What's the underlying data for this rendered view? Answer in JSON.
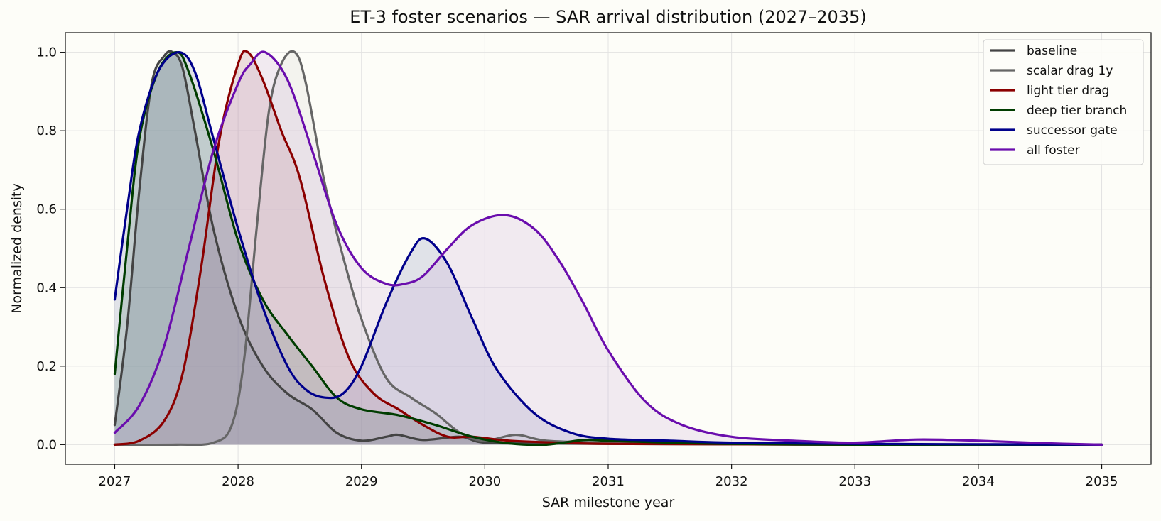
{
  "chart_data": {
    "type": "area",
    "title": "ET-3 foster scenarios — SAR arrival distribution (2027–2035)",
    "xlabel": "SAR milestone year",
    "ylabel": "Normalized density",
    "xlim": [
      2026.6,
      2035.4
    ],
    "ylim": [
      -0.05,
      1.05
    ],
    "xticks": [
      2027,
      2028,
      2029,
      2030,
      2031,
      2032,
      2033,
      2034,
      2035
    ],
    "yticks": [
      0.0,
      0.2,
      0.4,
      0.6,
      0.8,
      1.0
    ],
    "ytick_labels": [
      "0.0",
      "0.2",
      "0.4",
      "0.6",
      "0.8",
      "1.0"
    ],
    "grid": true,
    "legend_position": "top-right",
    "series": [
      {
        "name": "baseline",
        "color": "#444444",
        "fill": "#5a6a7a",
        "x": [
          2027.0,
          2027.1,
          2027.2,
          2027.3,
          2027.4,
          2027.47,
          2027.55,
          2027.65,
          2027.8,
          2028.0,
          2028.2,
          2028.4,
          2028.6,
          2028.8,
          2029.0,
          2029.2,
          2029.3,
          2029.5,
          2029.8,
          2030.0,
          2030.5,
          2031.0,
          2032.0,
          2033.0,
          2034.0,
          2035.0
        ],
        "y": [
          0.05,
          0.3,
          0.65,
          0.92,
          0.99,
          1.0,
          0.96,
          0.8,
          0.55,
          0.33,
          0.2,
          0.13,
          0.09,
          0.03,
          0.01,
          0.02,
          0.025,
          0.012,
          0.02,
          0.005,
          0.003,
          0.002,
          0.001,
          0.001,
          0.0,
          0.0
        ]
      },
      {
        "name": "scalar drag 1y",
        "color": "#666666",
        "fill": "#d2d2cc",
        "x": [
          2027.0,
          2027.5,
          2027.8,
          2027.95,
          2028.05,
          2028.15,
          2028.25,
          2028.35,
          2028.46,
          2028.55,
          2028.7,
          2028.85,
          2029.0,
          2029.2,
          2029.4,
          2029.6,
          2029.8,
          2030.0,
          2030.25,
          2030.5,
          2031.0,
          2032.0,
          2033.0,
          2034.0,
          2035.0
        ],
        "y": [
          0.0,
          0.0,
          0.005,
          0.05,
          0.22,
          0.55,
          0.85,
          0.97,
          1.0,
          0.92,
          0.67,
          0.48,
          0.32,
          0.17,
          0.12,
          0.08,
          0.03,
          0.01,
          0.025,
          0.01,
          0.005,
          0.001,
          0.0,
          0.0,
          0.0
        ]
      },
      {
        "name": "light tier drag",
        "color": "#8b0000",
        "fill": "#b0707a",
        "x": [
          2027.0,
          2027.2,
          2027.4,
          2027.55,
          2027.7,
          2027.85,
          2028.0,
          2028.08,
          2028.2,
          2028.35,
          2028.5,
          2028.7,
          2028.9,
          2029.1,
          2029.3,
          2029.5,
          2029.7,
          2029.9,
          2030.2,
          2030.6,
          2031.0,
          2032.0,
          2033.0,
          2034.0,
          2035.0
        ],
        "y": [
          0.0,
          0.01,
          0.06,
          0.18,
          0.45,
          0.78,
          0.97,
          1.0,
          0.93,
          0.8,
          0.68,
          0.42,
          0.22,
          0.13,
          0.09,
          0.05,
          0.02,
          0.02,
          0.01,
          0.005,
          0.002,
          0.001,
          0.0,
          0.0,
          0.0
        ]
      },
      {
        "name": "deep tier branch",
        "color": "#003d00",
        "fill": "#4a7a5a",
        "x": [
          2027.0,
          2027.1,
          2027.2,
          2027.35,
          2027.5,
          2027.6,
          2027.8,
          2028.0,
          2028.2,
          2028.4,
          2028.6,
          2028.8,
          2029.0,
          2029.3,
          2029.6,
          2029.9,
          2030.2,
          2030.5,
          2030.8,
          2031.0,
          2031.5,
          2032.0,
          2033.0,
          2034.0,
          2035.0
        ],
        "y": [
          0.18,
          0.5,
          0.78,
          0.95,
          1.0,
          0.95,
          0.75,
          0.52,
          0.37,
          0.28,
          0.2,
          0.12,
          0.09,
          0.075,
          0.05,
          0.02,
          0.003,
          0.0,
          0.012,
          0.01,
          0.005,
          0.002,
          0.0,
          0.0,
          0.0
        ]
      },
      {
        "name": "successor gate",
        "color": "#00008b",
        "fill": "#7a86b0",
        "x": [
          2027.0,
          2027.1,
          2027.2,
          2027.35,
          2027.52,
          2027.65,
          2027.8,
          2028.0,
          2028.2,
          2028.4,
          2028.55,
          2028.7,
          2028.85,
          2029.0,
          2029.2,
          2029.4,
          2029.52,
          2029.7,
          2029.9,
          2030.1,
          2030.4,
          2030.7,
          2031.0,
          2031.5,
          2032.0,
          2033.0,
          2034.0,
          2035.0
        ],
        "y": [
          0.37,
          0.6,
          0.8,
          0.95,
          1.0,
          0.95,
          0.78,
          0.55,
          0.35,
          0.2,
          0.14,
          0.12,
          0.13,
          0.2,
          0.36,
          0.49,
          0.525,
          0.46,
          0.32,
          0.19,
          0.08,
          0.03,
          0.015,
          0.01,
          0.005,
          0.002,
          0.001,
          0.0
        ]
      },
      {
        "name": "all foster",
        "color": "#6a0dad",
        "fill": "#c8a8d8",
        "x": [
          2027.0,
          2027.2,
          2027.4,
          2027.6,
          2027.8,
          2028.0,
          2028.1,
          2028.22,
          2028.4,
          2028.6,
          2028.8,
          2029.0,
          2029.2,
          2029.35,
          2029.5,
          2029.7,
          2029.9,
          2030.16,
          2030.4,
          2030.6,
          2030.8,
          2031.0,
          2031.3,
          2031.6,
          2032.0,
          2032.5,
          2033.0,
          2033.5,
          2034.0,
          2034.5,
          2035.0
        ],
        "y": [
          0.03,
          0.1,
          0.25,
          0.5,
          0.75,
          0.92,
          0.97,
          1.0,
          0.93,
          0.75,
          0.56,
          0.45,
          0.41,
          0.41,
          0.43,
          0.5,
          0.56,
          0.585,
          0.55,
          0.47,
          0.36,
          0.24,
          0.11,
          0.05,
          0.02,
          0.01,
          0.005,
          0.013,
          0.01,
          0.004,
          0.0
        ]
      }
    ]
  }
}
